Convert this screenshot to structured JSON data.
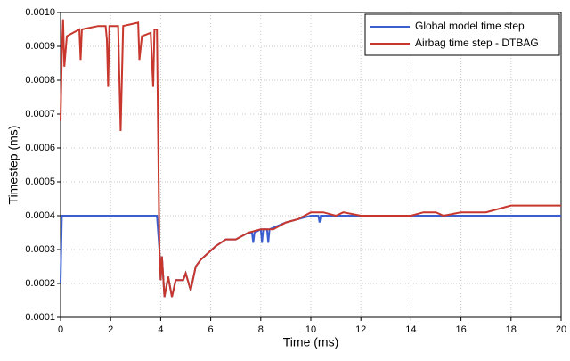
{
  "chart_data": {
    "type": "line",
    "xlabel": "Time (ms)",
    "ylabel": "Timestep (ms)",
    "xlim": [
      0,
      20
    ],
    "xticks": [
      0,
      2,
      4,
      6,
      8,
      10,
      12,
      14,
      16,
      18,
      20
    ],
    "ylim": [
      0.0001,
      0.001
    ],
    "yticks": [
      0.0001,
      0.0002,
      0.0003,
      0.0004,
      0.0005,
      0.0006,
      0.0007,
      0.0008,
      0.0009,
      {
        "value": 0.001,
        "label": "0.0010"
      }
    ],
    "grid": true,
    "legend": "top-right",
    "series": [
      {
        "name": "Global model time step",
        "color": "#3b5fd0",
        "x": [
          0,
          0.05,
          3.85,
          3.95,
          4.0,
          4.05,
          4.15,
          4.3,
          4.45,
          4.6,
          4.9,
          5.0,
          5.2,
          5.4,
          5.6,
          5.9,
          6.2,
          6.6,
          7.0,
          7.5,
          7.65,
          7.7,
          7.75,
          8.0,
          8.05,
          8.1,
          8.25,
          8.3,
          8.35,
          9,
          9.5,
          10,
          10.3,
          10.35,
          10.4,
          20
        ],
        "values": [
          0.0002,
          0.0004,
          0.0004,
          0.0003,
          0.00021,
          0.00028,
          0.00016,
          0.00022,
          0.00016,
          0.00021,
          0.00021,
          0.00023,
          0.00018,
          0.00025,
          0.00027,
          0.00029,
          0.00031,
          0.00033,
          0.00033,
          0.00035,
          0.00035,
          0.00032,
          0.00035,
          0.00036,
          0.00032,
          0.00036,
          0.00036,
          0.00032,
          0.00036,
          0.00038,
          0.00039,
          0.0004,
          0.0004,
          0.00038,
          0.0004,
          0.0004
        ]
      },
      {
        "name": "Airbag time step - DTBAG",
        "color": "#c8372d",
        "x": [
          0,
          0.05,
          0.1,
          0.15,
          0.25,
          0.5,
          0.75,
          0.8,
          0.85,
          1.5,
          1.8,
          1.85,
          1.9,
          1.95,
          2.3,
          2.4,
          2.5,
          3.1,
          3.15,
          3.25,
          3.6,
          3.7,
          3.75,
          3.85,
          3.95,
          4.0,
          4.05,
          4.15,
          4.3,
          4.45,
          4.6,
          4.9,
          5.0,
          5.2,
          5.4,
          5.6,
          5.9,
          6.2,
          6.6,
          7.0,
          7.5,
          8.0,
          8.5,
          9.0,
          9.5,
          10.0,
          10.5,
          11.0,
          11.3,
          12,
          13,
          14,
          14.5,
          15,
          15.3,
          16,
          17,
          17.5,
          18,
          20
        ],
        "values": [
          0.00068,
          0.00088,
          0.00098,
          0.00084,
          0.00093,
          0.00094,
          0.00095,
          0.00086,
          0.00095,
          0.00096,
          0.00096,
          0.00092,
          0.00078,
          0.00096,
          0.00096,
          0.00065,
          0.00096,
          0.00097,
          0.00086,
          0.00093,
          0.00094,
          0.00078,
          0.00095,
          0.00095,
          0.0003,
          0.00021,
          0.00028,
          0.00016,
          0.00022,
          0.00016,
          0.00021,
          0.00021,
          0.00023,
          0.00018,
          0.00025,
          0.00027,
          0.00029,
          0.00031,
          0.00033,
          0.00033,
          0.00035,
          0.00036,
          0.00036,
          0.00038,
          0.00039,
          0.00041,
          0.00041,
          0.0004,
          0.00041,
          0.0004,
          0.0004,
          0.0004,
          0.00041,
          0.00041,
          0.0004,
          0.00041,
          0.00041,
          0.00042,
          0.00043,
          0.00043
        ]
      }
    ]
  }
}
